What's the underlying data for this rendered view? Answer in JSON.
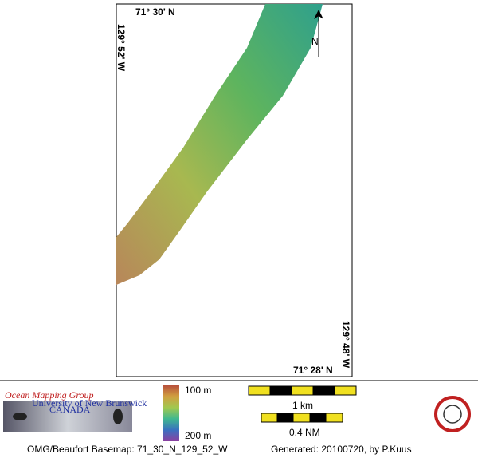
{
  "map": {
    "labels": {
      "top_lat": "71° 30' N",
      "left_lon": "129° 52' W",
      "north": "N",
      "right_lon": "129° 48' W",
      "bottom_lat": "71° 28' N"
    }
  },
  "legend": {
    "org": "Ocean Mapping Group",
    "university": "University of New Brunswick",
    "country": "CANADA",
    "depth_top": "100 m",
    "depth_bottom": "200 m",
    "scale_km": "1 km",
    "scale_nm": "0.4 NM"
  },
  "footer": {
    "basemap": "OMG/Beaufort Basemap: 71_30_N_129_52_W",
    "generated": "Generated: 20100720, by P.Kuus"
  }
}
